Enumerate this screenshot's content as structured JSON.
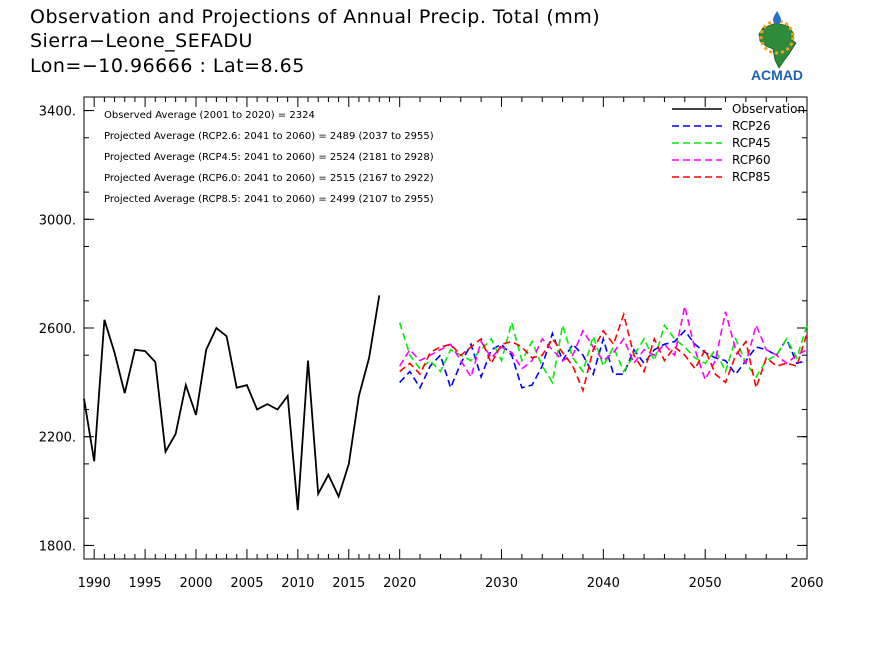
{
  "header": {
    "line1": "Observation and Projections of Annual Precip. Total (mm)",
    "line2": "Sierra−Leone_SEFADU",
    "line3": "Lon=−10.96666 : Lat=8.65"
  },
  "logo": {
    "text": "ACMAD",
    "icon": "africa-map-logo"
  },
  "notes": [
    "Observed Average (2001 to 2020) = 2324",
    "Projected Average (RCP2.6: 2041 to 2060) = 2489 (2037 to 2955)",
    "Projected Average (RCP4.5: 2041 to 2060) = 2524 (2181 to 2928)",
    "Projected Average (RCP6.0: 2041 to 2060) = 2515 (2167 to 2922)",
    "Projected Average (RCP8.5: 2041 to 2060) = 2499 (2107 to 2955)"
  ],
  "chart_data": {
    "type": "line",
    "xlim": [
      1989,
      2060
    ],
    "ylim": [
      1750,
      3450
    ],
    "grid": false,
    "legend_position": "top-right",
    "x_ticks_major": [
      1990,
      1995,
      2000,
      2005,
      2010,
      2015,
      2020,
      2030,
      2040,
      2050,
      2060
    ],
    "x_tick_labels": [
      "1990",
      "1995",
      "2000",
      "2005",
      "2010",
      "2015",
      "2020",
      "2030",
      "2040",
      "2050",
      "2060"
    ],
    "y_ticks": [
      1800,
      2200,
      2600,
      3000,
      3400
    ],
    "y_tick_labels": [
      "1800.",
      "2200.",
      "2600.",
      "3000.",
      "3400."
    ],
    "series": [
      {
        "name": "Observation",
        "color": "#000000",
        "dashed": false,
        "x": [
          1989,
          1990,
          1991,
          1992,
          1993,
          1994,
          1995,
          1996,
          1997,
          1998,
          1999,
          2000,
          2001,
          2002,
          2003,
          2004,
          2005,
          2006,
          2007,
          2008,
          2009,
          2010,
          2011,
          2012,
          2013,
          2014,
          2015,
          2016,
          2017,
          2018,
          2019,
          2020
        ],
        "values": [
          2340,
          2110,
          2630,
          2510,
          2360,
          2520,
          2515,
          2475,
          2145,
          2210,
          2390,
          2280,
          2520,
          2600,
          2570,
          2380,
          2390,
          2300,
          2320,
          2300,
          2350,
          1930,
          2480,
          1990,
          2060,
          1980,
          2100,
          2350,
          2490,
          2720,
          null,
          null
        ]
      },
      {
        "name": "RCP26",
        "color": "#0000ff",
        "dashed": true,
        "x": [
          2020,
          2021,
          2022,
          2023,
          2024,
          2025,
          2026,
          2027,
          2028,
          2029,
          2030,
          2031,
          2032,
          2033,
          2034,
          2035,
          2036,
          2037,
          2038,
          2039,
          2040,
          2041,
          2042,
          2043,
          2044,
          2045,
          2046,
          2047,
          2048,
          2049,
          2050,
          2051,
          2052,
          2053,
          2054,
          2055,
          2056,
          2057,
          2058,
          2059,
          2060
        ],
        "values": [
          2400,
          2440,
          2380,
          2460,
          2500,
          2380,
          2470,
          2540,
          2420,
          2520,
          2540,
          2500,
          2380,
          2390,
          2460,
          2580,
          2480,
          2540,
          2500,
          2430,
          2560,
          2430,
          2430,
          2520,
          2470,
          2520,
          2540,
          2550,
          2590,
          2540,
          2510,
          2490,
          2480,
          2430,
          2480,
          2530,
          2520,
          2500,
          2560,
          2470,
          2480
        ]
      },
      {
        "name": "RCP45",
        "color": "#00ee00",
        "dashed": true,
        "x": [
          2020,
          2021,
          2022,
          2023,
          2024,
          2025,
          2026,
          2027,
          2028,
          2029,
          2030,
          2031,
          2032,
          2033,
          2034,
          2035,
          2036,
          2037,
          2038,
          2039,
          2040,
          2041,
          2042,
          2043,
          2044,
          2045,
          2046,
          2047,
          2048,
          2049,
          2050,
          2051,
          2052,
          2053,
          2054,
          2055,
          2056,
          2057,
          2058,
          2059,
          2060
        ],
        "values": [
          2620,
          2500,
          2450,
          2480,
          2440,
          2520,
          2500,
          2480,
          2520,
          2560,
          2480,
          2620,
          2480,
          2550,
          2460,
          2400,
          2610,
          2490,
          2440,
          2570,
          2460,
          2530,
          2440,
          2500,
          2560,
          2480,
          2610,
          2560,
          2530,
          2490,
          2470,
          2520,
          2440,
          2560,
          2470,
          2420,
          2480,
          2500,
          2560,
          2490,
          2610
        ]
      },
      {
        "name": "RCP60",
        "color": "#ff00ff",
        "dashed": true,
        "x": [
          2020,
          2021,
          2022,
          2023,
          2024,
          2025,
          2026,
          2027,
          2028,
          2029,
          2030,
          2031,
          2032,
          2033,
          2034,
          2035,
          2036,
          2037,
          2038,
          2039,
          2040,
          2041,
          2042,
          2043,
          2044,
          2045,
          2046,
          2047,
          2048,
          2049,
          2050,
          2051,
          2052,
          2053,
          2054,
          2055,
          2056,
          2057,
          2058,
          2059,
          2060
        ],
        "values": [
          2460,
          2520,
          2480,
          2500,
          2520,
          2540,
          2480,
          2420,
          2550,
          2490,
          2530,
          2510,
          2450,
          2480,
          2560,
          2520,
          2480,
          2500,
          2590,
          2530,
          2480,
          2510,
          2560,
          2470,
          2520,
          2500,
          2540,
          2500,
          2680,
          2520,
          2410,
          2480,
          2660,
          2520,
          2470,
          2610,
          2520,
          2500,
          2470,
          2500,
          2520
        ]
      },
      {
        "name": "RCP85",
        "color": "#ff0000",
        "dashed": true,
        "x": [
          2020,
          2021,
          2022,
          2023,
          2024,
          2025,
          2026,
          2027,
          2028,
          2029,
          2030,
          2031,
          2032,
          2033,
          2034,
          2035,
          2036,
          2037,
          2038,
          2039,
          2040,
          2041,
          2042,
          2043,
          2044,
          2045,
          2046,
          2047,
          2048,
          2049,
          2050,
          2051,
          2052,
          2053,
          2054,
          2055,
          2056,
          2057,
          2058,
          2059,
          2060
        ],
        "values": [
          2440,
          2470,
          2430,
          2510,
          2530,
          2540,
          2500,
          2530,
          2560,
          2470,
          2540,
          2550,
          2530,
          2490,
          2500,
          2560,
          2510,
          2460,
          2370,
          2520,
          2590,
          2540,
          2650,
          2500,
          2440,
          2560,
          2480,
          2530,
          2500,
          2450,
          2520,
          2430,
          2400,
          2500,
          2550,
          2380,
          2490,
          2460,
          2470,
          2460,
          2580
        ]
      }
    ]
  }
}
